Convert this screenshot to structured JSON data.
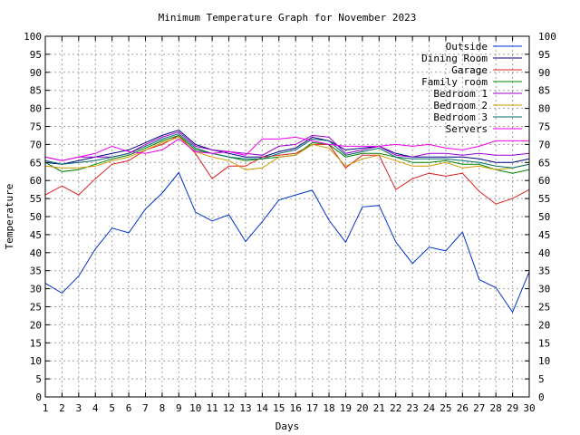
{
  "chart_data": {
    "type": "line",
    "title": "Minimum Temperature Graph for November 2023",
    "xlabel": "Days",
    "ylabel": "Temperature",
    "xlim": [
      1,
      30
    ],
    "ylim": [
      0,
      100
    ],
    "x_ticks": [
      1,
      2,
      3,
      4,
      5,
      6,
      7,
      8,
      9,
      10,
      11,
      12,
      13,
      14,
      15,
      16,
      17,
      18,
      19,
      20,
      21,
      22,
      23,
      24,
      25,
      26,
      27,
      28,
      29,
      30
    ],
    "y_ticks": [
      0,
      5,
      10,
      15,
      20,
      25,
      30,
      35,
      40,
      45,
      50,
      55,
      60,
      65,
      70,
      75,
      80,
      85,
      90,
      95,
      100
    ],
    "grid": true,
    "legend_position": "top-right",
    "series": [
      {
        "name": "Outside",
        "color": "#0033cc",
        "values": [
          31.5,
          28.8,
          33.5,
          41,
          46.8,
          45.5,
          52.1,
          56.5,
          62.2,
          51.2,
          48.8,
          50.5,
          43.1,
          48.6,
          54.6,
          56,
          57.3,
          49,
          42.9,
          52.7,
          53.1,
          43,
          37,
          41.5,
          40.5,
          45.7,
          32.5,
          30.3,
          23.5,
          34.7
        ]
      },
      {
        "name": "Dining Room",
        "color": "#000080",
        "values": [
          65,
          64.5,
          65.5,
          66.5,
          67.5,
          68.5,
          70.5,
          72.5,
          74,
          70,
          68.5,
          67.5,
          66.5,
          66.5,
          68,
          69,
          72,
          71,
          68.5,
          69,
          69.5,
          67.5,
          66.5,
          66.5,
          66.5,
          66.5,
          66,
          65,
          65,
          66
        ]
      },
      {
        "name": "Garage",
        "color": "#e02020",
        "values": [
          56,
          58.5,
          56,
          60.5,
          64.5,
          65.5,
          68.5,
          70,
          72.5,
          67.5,
          60.5,
          64,
          64,
          66.5,
          67,
          67.5,
          70,
          70,
          63.5,
          67,
          67,
          57.5,
          60.5,
          62,
          61.2,
          62,
          57,
          53.5,
          55,
          57.5
        ]
      },
      {
        "name": "Family room",
        "color": "#008000",
        "values": [
          65,
          62.5,
          63,
          64.5,
          66,
          67,
          69,
          71,
          72.5,
          68.5,
          67.5,
          66.5,
          65.5,
          66,
          66.5,
          67,
          70.5,
          70,
          66.5,
          67.5,
          67.5,
          66.5,
          65,
          65,
          65.5,
          64.5,
          64.5,
          63,
          62,
          63
        ]
      },
      {
        "name": "Bedroom 1",
        "color": "#9900cc",
        "values": [
          66.5,
          65.5,
          66.5,
          66.5,
          66.5,
          67.5,
          70,
          72,
          73.5,
          69.5,
          68.5,
          68,
          67.5,
          67,
          69.5,
          70,
          72.5,
          72,
          67.5,
          68.5,
          69.5,
          67,
          66.5,
          67.5,
          67.5,
          67,
          67.5,
          67,
          67,
          67.5
        ]
      },
      {
        "name": "Bedroom 2",
        "color": "#cc9900",
        "values": [
          64,
          63.5,
          63.5,
          64,
          65.5,
          66.5,
          68.5,
          70.5,
          72,
          68,
          66.5,
          65.5,
          63,
          63.5,
          66.5,
          67,
          70,
          69,
          64,
          66,
          67,
          65.5,
          64,
          64,
          65,
          63.5,
          64,
          63,
          63.5,
          64.5
        ]
      },
      {
        "name": "Bedroom 3",
        "color": "#006b6b",
        "values": [
          65.5,
          64.5,
          65,
          65.5,
          66.5,
          67.5,
          69.5,
          71.5,
          73,
          69,
          67.5,
          66.5,
          66,
          66,
          67.5,
          68.5,
          71.5,
          71,
          67,
          68,
          69,
          66.5,
          66,
          66,
          66,
          65.5,
          65,
          64,
          63.5,
          64.5
        ]
      },
      {
        "name": "Servers",
        "color": "#ee00ee",
        "values": [
          66.5,
          65.5,
          66.5,
          67.5,
          69.5,
          68,
          67.5,
          68.5,
          71.5,
          68,
          67.5,
          68,
          67,
          71.5,
          71.5,
          72,
          71,
          70,
          69.5,
          69.5,
          69.5,
          70,
          69.5,
          70,
          69,
          68.5,
          69.5,
          71,
          71,
          71
        ]
      }
    ]
  }
}
